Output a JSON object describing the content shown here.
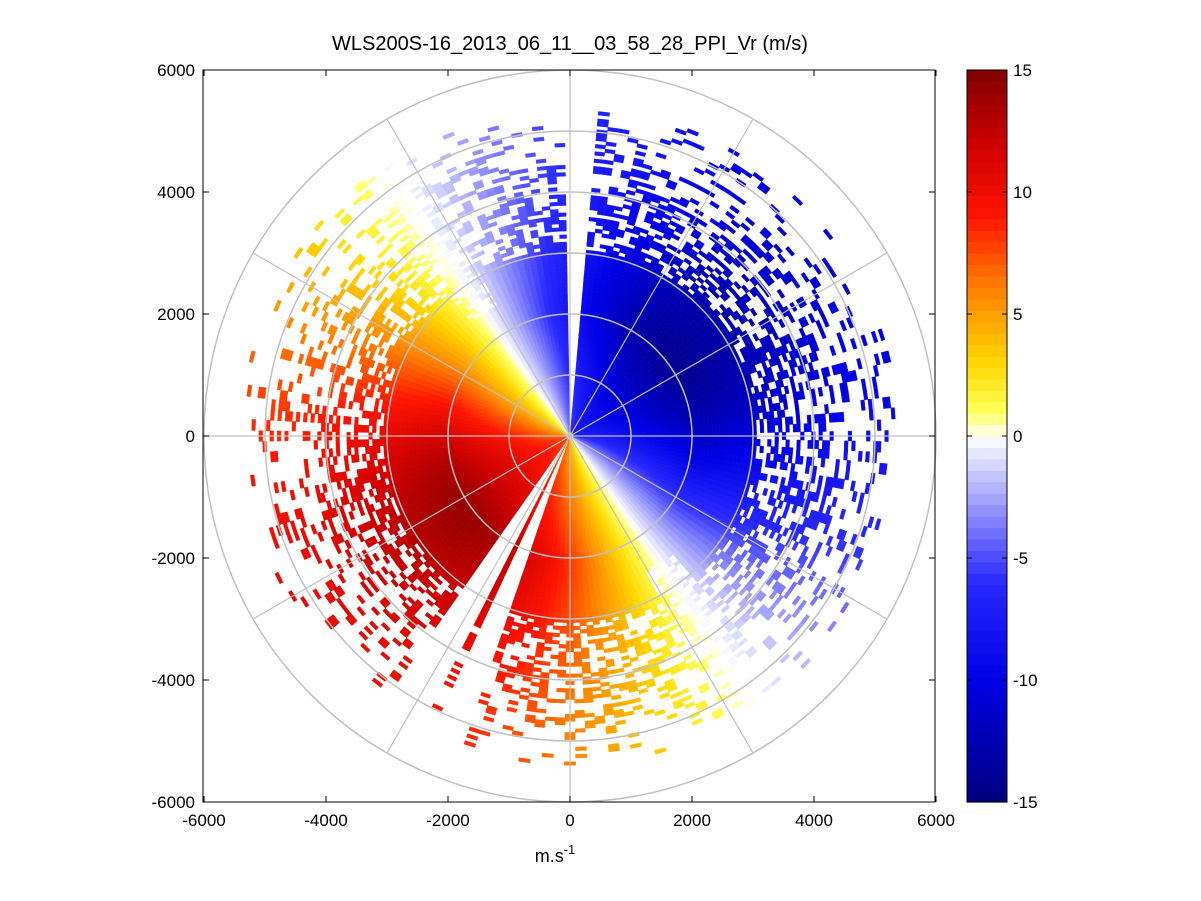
{
  "chart_data": {
    "type": "heatmap",
    "subtype": "polar-ppi-scan",
    "title": "WLS200S-16_2013_06_11__03_58_28_PPI_Vr (m/s)",
    "xlabel": "m.s",
    "xlabel_superscript": "-1",
    "ylabel": "",
    "xlim": [
      -6000,
      6000
    ],
    "ylim": [
      -6000,
      6000
    ],
    "xticks": [
      -6000,
      -4000,
      -2000,
      0,
      2000,
      4000,
      6000
    ],
    "yticks": [
      6000,
      4000,
      2000,
      0,
      -2000,
      -4000,
      -6000
    ],
    "xtick_labels": [
      "-6000",
      "-4000",
      "-2000",
      "0",
      "2000",
      "4000",
      "6000"
    ],
    "ytick_labels": [
      "6000",
      "4000",
      "2000",
      "0",
      "-2000",
      "-4000",
      "-6000"
    ],
    "polar_grid": {
      "ring_radii": [
        1000,
        2000,
        3000,
        4000,
        5000,
        6000
      ],
      "spoke_angles_deg": [
        0,
        30,
        60,
        90,
        120,
        150,
        180,
        210,
        240,
        270,
        300,
        330
      ]
    },
    "colorbar": {
      "min": -15,
      "max": 15,
      "ticks": [
        15,
        10,
        5,
        0,
        -5,
        -10,
        -15
      ],
      "tick_labels": [
        "15",
        "10",
        "5",
        "0",
        "-5",
        "-10",
        "-15"
      ],
      "colormap": "dark-blue to blue to white to yellow to red to dark-red"
    },
    "field": {
      "quantity": "radial velocity Vr (m/s)",
      "max_range_m": 5400,
      "dense_range_m": 3000,
      "zero_line_azimuth_deg": 130,
      "peak_positive_azimuth_deg": 235,
      "peak_negative_azimuth_deg": 45,
      "peak_magnitude": 14,
      "missing_sector_azimuth_deg": [
        [
          0,
          4
        ],
        [
          200,
          204
        ],
        [
          208,
          214
        ]
      ]
    }
  },
  "colors": {
    "background": "#ffffff",
    "grid": "#c0c0c0",
    "axes": "#000000"
  }
}
